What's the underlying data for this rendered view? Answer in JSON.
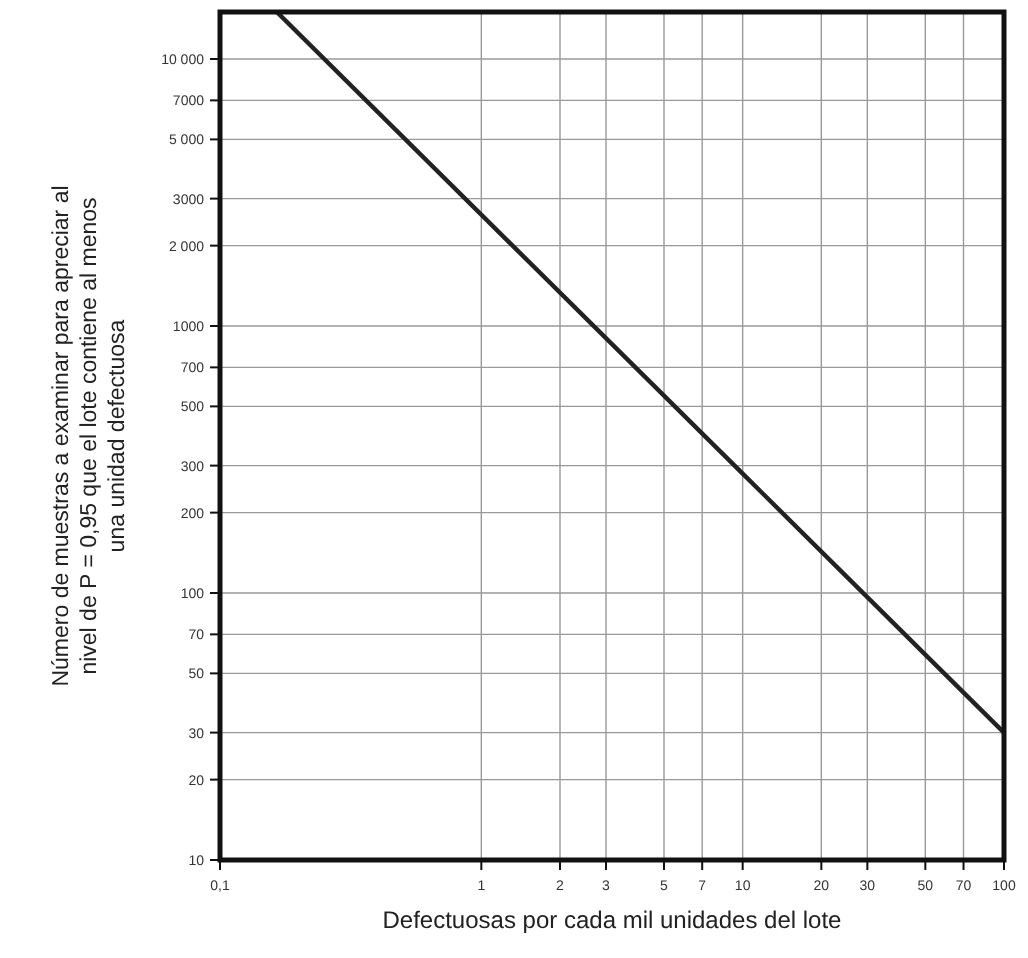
{
  "chart_data": {
    "type": "line",
    "xlabel": "Defectuosas por cada mil unidades del lote",
    "ylabel": "Número de muestras a examinar para apreciar al\nnivel de P = 0,95 que el lote contiene al menos\nuna unidad defectuosa",
    "log": "xy",
    "grid": true,
    "x": [
      0.165,
      10,
      100
    ],
    "series": [
      {
        "color": "#222222",
        "values": [
          15000,
          280,
          30
        ]
      }
    ],
    "xlim": [
      0.1,
      100
    ],
    "xticks": [
      {
        "value": 0.1,
        "label": "0,1"
      },
      1,
      2,
      3,
      5,
      7,
      10,
      20,
      30,
      50,
      70,
      100
    ],
    "ylim": [
      10,
      15000
    ],
    "yticks": [
      10,
      20,
      30,
      50,
      70,
      100,
      200,
      300,
      500,
      700,
      1000,
      {
        "value": 2000,
        "label": "2 000"
      },
      3000,
      {
        "value": 5000,
        "label": "5 000"
      },
      7000,
      {
        "value": 10000,
        "label": "10 000"
      }
    ]
  }
}
